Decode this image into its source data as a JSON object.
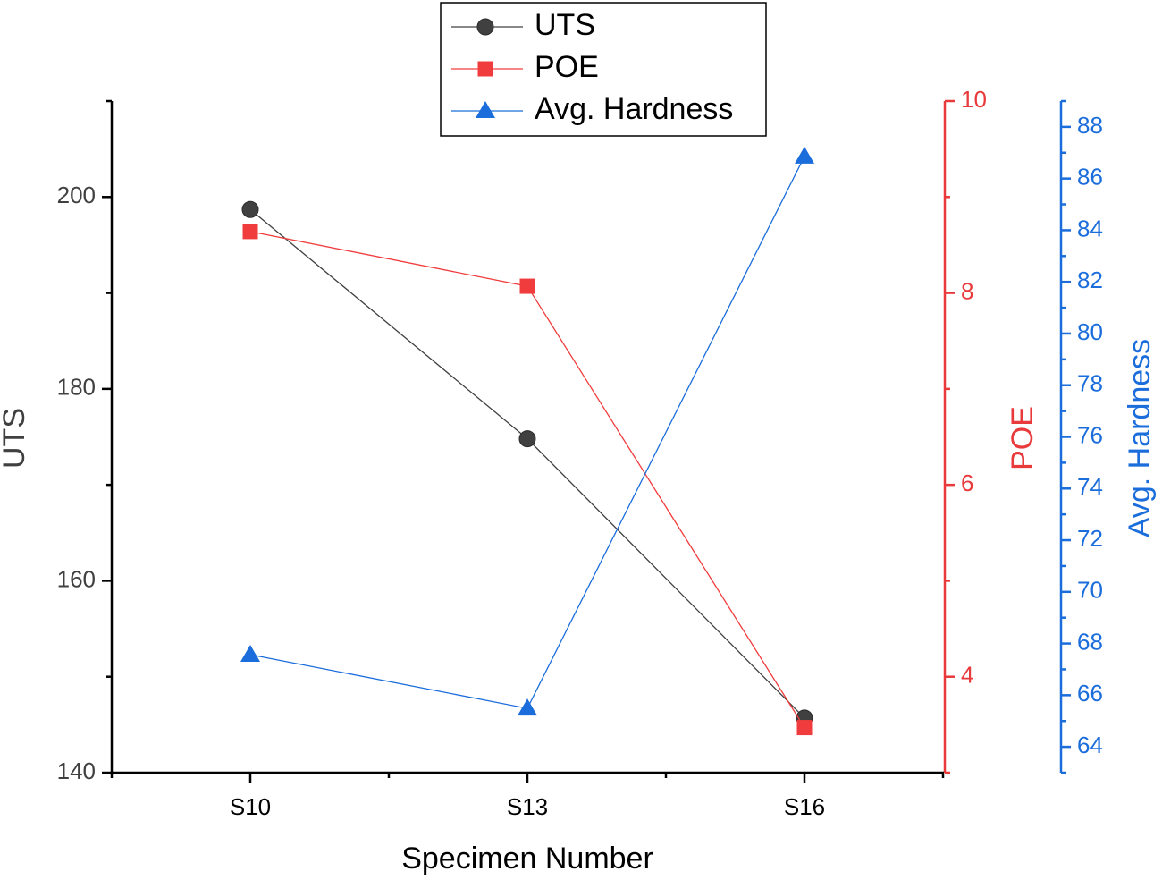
{
  "chart_data": {
    "type": "line",
    "xlabel": "Specimen Number",
    "categories": [
      "S10",
      "S13",
      "S16"
    ],
    "ylabel": "UTS",
    "ylim": [
      140,
      210
    ],
    "yticks": [
      140,
      160,
      180,
      200
    ],
    "yminorticks": [
      150,
      170,
      190,
      210
    ],
    "ycolor": "#404040",
    "y2label": "POE",
    "y2lim": [
      3,
      10
    ],
    "y2ticks": [
      4,
      6,
      8,
      10
    ],
    "y2minorticks": [
      3,
      5,
      7,
      9
    ],
    "y2color": "#e8393b",
    "y3label": "Avg. Hardness",
    "y3lim": [
      63,
      89
    ],
    "y3ticks": [
      64,
      66,
      68,
      70,
      72,
      74,
      76,
      78,
      80,
      82,
      84,
      86,
      88
    ],
    "y3minorticks": [
      63,
      65,
      67,
      69,
      71,
      73,
      75,
      77,
      79,
      81,
      83,
      85,
      87,
      89
    ],
    "y3color": "#1a6ddb",
    "legend": "top",
    "series": [
      {
        "name": "UTS",
        "color": "#404040",
        "marker": "circle",
        "axis": "y",
        "values": [
          198.7,
          174.8,
          145.7
        ]
      },
      {
        "name": "POE",
        "color": "#f03c3c",
        "marker": "square",
        "axis": "y2",
        "values": [
          8.64,
          8.07,
          3.47
        ]
      },
      {
        "name": "Avg. Hardness",
        "color": "#1a6ddb",
        "marker": "triangle",
        "axis": "y3",
        "values": [
          67.57,
          65.49,
          86.86
        ]
      }
    ]
  }
}
